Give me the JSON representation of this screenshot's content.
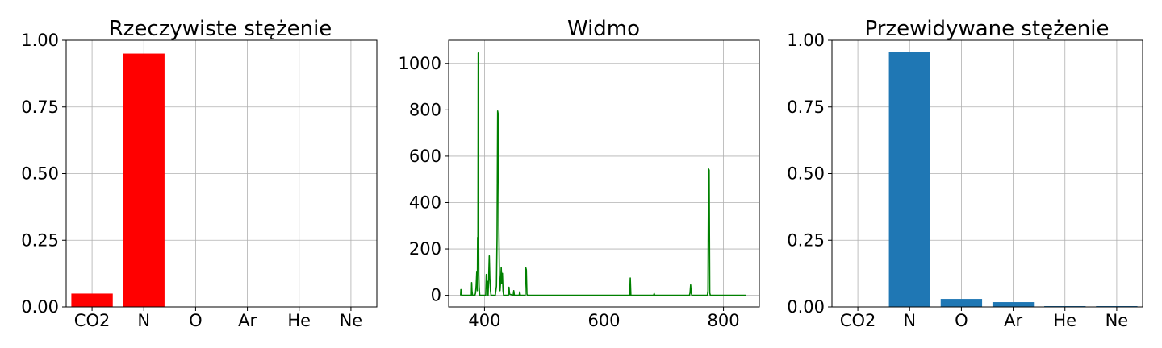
{
  "chart_data": [
    {
      "type": "bar",
      "title": "Rzeczywiste stężenie",
      "xlabel": "",
      "ylabel": "",
      "categories": [
        "CO2",
        "N",
        "O",
        "Ar",
        "He",
        "Ne"
      ],
      "values": [
        0.05,
        0.95,
        0.0,
        0.0,
        0.0,
        0.0
      ],
      "ylim": [
        0,
        1
      ],
      "yticks": [
        0,
        0.25,
        0.5,
        0.75,
        1
      ],
      "ytick_labels": [
        "0.00",
        "0.25",
        "0.50",
        "0.75",
        "1.00"
      ],
      "color": "#ff0000",
      "grid": true
    },
    {
      "type": "line",
      "title": "Widmo",
      "xlabel": "",
      "ylabel": "",
      "xlim": [
        340,
        860
      ],
      "ylim": [
        -50,
        1100
      ],
      "xticks": [
        400,
        600,
        800
      ],
      "xtick_labels": [
        "400",
        "600",
        "800"
      ],
      "yticks": [
        0,
        200,
        400,
        600,
        800,
        1000
      ],
      "ytick_labels": [
        "0",
        "200",
        "400",
        "600",
        "800",
        "1000"
      ],
      "color": "#008000",
      "grid": true,
      "x": [
        360,
        360.5,
        361,
        362,
        378,
        378.5,
        379,
        380,
        384,
        385,
        386,
        387,
        388,
        388.5,
        389,
        389.5,
        390,
        390.5,
        391,
        391.5,
        392,
        393,
        394,
        400,
        402,
        403,
        404,
        405,
        406,
        407,
        408,
        409,
        410,
        411,
        412,
        413,
        414,
        415,
        416,
        417,
        418,
        419,
        420,
        421,
        422,
        423,
        424,
        425,
        426,
        427,
        428,
        429,
        430,
        431,
        432,
        433,
        434,
        435,
        436,
        437,
        440,
        441,
        442,
        448,
        449,
        450,
        458,
        459,
        460,
        468,
        469,
        470,
        471,
        472,
        643,
        644,
        645,
        683,
        684,
        685,
        743,
        744,
        745,
        746,
        747,
        773,
        774,
        775,
        776,
        777,
        778,
        838
      ],
      "y": [
        0,
        25,
        5,
        0,
        0,
        55,
        20,
        0,
        0,
        10,
        40,
        100,
        20,
        250,
        200,
        1045,
        330,
        90,
        40,
        20,
        0,
        0,
        0,
        0,
        0,
        90,
        30,
        60,
        0,
        80,
        170,
        70,
        20,
        0,
        0,
        0,
        0,
        0,
        0,
        0,
        0,
        20,
        40,
        250,
        795,
        780,
        300,
        80,
        20,
        60,
        120,
        50,
        95,
        20,
        0,
        0,
        0,
        0,
        0,
        0,
        0,
        35,
        5,
        0,
        20,
        0,
        0,
        15,
        0,
        0,
        120,
        110,
        5,
        0,
        0,
        75,
        0,
        0,
        8,
        0,
        0,
        10,
        45,
        10,
        0,
        0,
        20,
        545,
        540,
        10,
        0,
        0
      ]
    },
    {
      "type": "bar",
      "title": "Przewidywane stężenie",
      "xlabel": "",
      "ylabel": "",
      "categories": [
        "CO2",
        "N",
        "O",
        "Ar",
        "He",
        "Ne"
      ],
      "values": [
        0.0,
        0.955,
        0.03,
        0.018,
        0.003,
        0.003
      ],
      "ylim": [
        0,
        1
      ],
      "yticks": [
        0,
        0.25,
        0.5,
        0.75,
        1
      ],
      "ytick_labels": [
        "0.00",
        "0.25",
        "0.50",
        "0.75",
        "1.00"
      ],
      "color": "#1f77b4",
      "grid": true
    }
  ]
}
